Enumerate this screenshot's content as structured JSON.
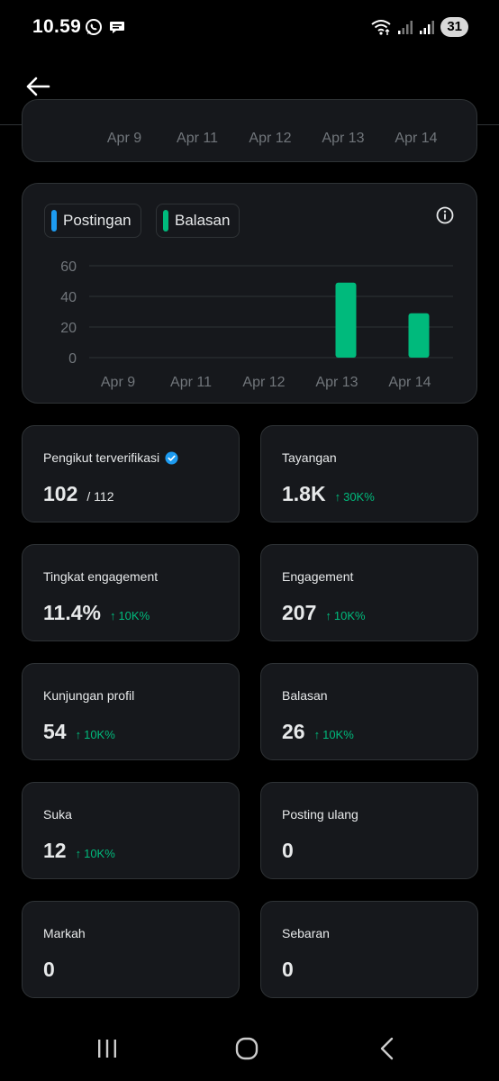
{
  "status_bar": {
    "time": "10.59",
    "battery": "31",
    "icons": [
      "whatsapp-icon",
      "chat-bubble-icon",
      "wifi-icon",
      "signal-icon",
      "signal-icon"
    ]
  },
  "header": {
    "back_icon": "arrow-left-icon"
  },
  "top_chart": {
    "x_labels": [
      "Apr 9",
      "Apr 11",
      "Apr 12",
      "Apr 13",
      "Apr 14"
    ]
  },
  "chart_data": {
    "type": "bar",
    "categories": [
      "Apr 9",
      "Apr 11",
      "Apr 12",
      "Apr 13",
      "Apr 14"
    ],
    "series": [
      {
        "name": "Postingan",
        "color": "#1d9bf0",
        "values": [
          0,
          0,
          0,
          0,
          0
        ]
      },
      {
        "name": "Balasan",
        "color": "#00ba7c",
        "values": [
          0,
          0,
          0,
          49,
          29
        ]
      }
    ],
    "y_ticks": [
      0,
      20,
      40,
      60
    ],
    "ylim": [
      0,
      60
    ],
    "grid": true,
    "legend": "top-left"
  },
  "stats": [
    {
      "label": "Pengikut terverifikasi",
      "value": "102",
      "sub": "/ 112",
      "delta": "",
      "verified": true
    },
    {
      "label": "Tayangan",
      "value": "1.8K",
      "sub": "",
      "delta": "30K%"
    },
    {
      "label": "Tingkat engagement",
      "value": "11.4%",
      "sub": "",
      "delta": "10K%"
    },
    {
      "label": "Engagement",
      "value": "207",
      "sub": "",
      "delta": "10K%"
    },
    {
      "label": "Kunjungan profil",
      "value": "54",
      "sub": "",
      "delta": "10K%"
    },
    {
      "label": "Balasan",
      "value": "26",
      "sub": "",
      "delta": "10K%"
    },
    {
      "label": "Suka",
      "value": "12",
      "sub": "",
      "delta": "10K%"
    },
    {
      "label": "Posting ulang",
      "value": "0",
      "sub": "",
      "delta": ""
    },
    {
      "label": "Markah",
      "value": "0",
      "sub": "",
      "delta": ""
    },
    {
      "label": "Sebaran",
      "value": "0",
      "sub": "",
      "delta": ""
    }
  ],
  "colors": {
    "accent_green": "#00ba7c",
    "accent_blue": "#1d9bf0",
    "card_bg": "#16181c",
    "border": "#2f3336"
  }
}
